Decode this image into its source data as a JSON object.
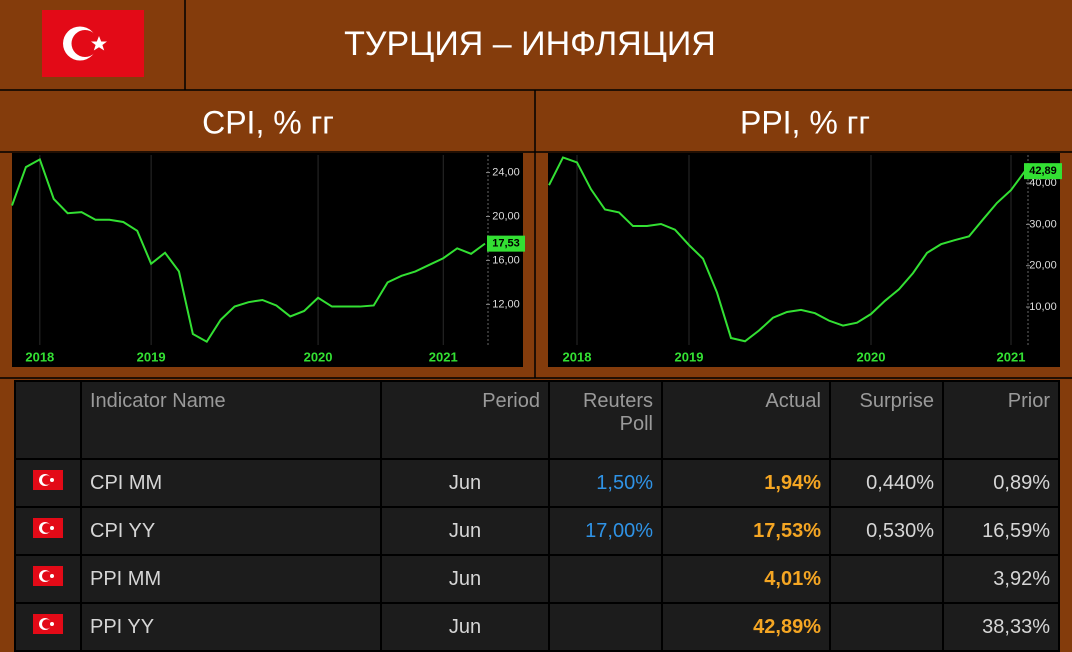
{
  "header": {
    "title": "ТУРЦИЯ – ИНФЛЯЦИЯ"
  },
  "chart_data": [
    {
      "type": "line",
      "title": "CPI, % гг",
      "categories": [
        null,
        null,
        "2018",
        null,
        null,
        null,
        null,
        null,
        null,
        null,
        "2019",
        null,
        null,
        null,
        null,
        null,
        null,
        null,
        null,
        null,
        null,
        null,
        "2020",
        null,
        null,
        null,
        null,
        null,
        null,
        null,
        null,
        "2021",
        null,
        null,
        null
      ],
      "values": [
        21.0,
        24.5,
        25.2,
        21.6,
        20.3,
        20.4,
        19.7,
        19.7,
        19.5,
        18.7,
        15.7,
        16.7,
        15.0,
        9.3,
        8.6,
        10.6,
        11.8,
        12.2,
        12.4,
        11.9,
        10.9,
        11.4,
        12.6,
        11.8,
        11.8,
        11.8,
        11.9,
        14.0,
        14.6,
        15.0,
        15.6,
        16.2,
        17.1,
        16.6,
        17.53
      ],
      "value_labels": [
        null,
        null,
        null,
        null,
        null,
        null,
        null,
        null,
        null,
        null,
        null,
        null,
        null,
        null,
        null,
        null,
        null,
        null,
        null,
        null,
        null,
        null,
        null,
        null,
        null,
        null,
        null,
        null,
        null,
        null,
        null,
        null,
        null,
        null,
        "17,53"
      ],
      "color": "#33e033",
      "ylim": [
        8.3,
        25.6
      ],
      "yticks": [
        {
          "value": 12,
          "label": "12,00"
        },
        {
          "value": 16,
          "label": "16,00"
        },
        {
          "value": 20,
          "label": "20,00"
        },
        {
          "value": 24,
          "label": "24,00"
        }
      ]
    },
    {
      "type": "line",
      "title": "PPI, % гг",
      "categories": [
        null,
        null,
        "2018",
        null,
        null,
        null,
        null,
        null,
        null,
        null,
        "2019",
        null,
        null,
        null,
        null,
        null,
        null,
        null,
        null,
        null,
        null,
        null,
        null,
        "2020",
        null,
        null,
        null,
        null,
        null,
        null,
        null,
        null,
        null,
        "2021",
        null
      ],
      "values": [
        39.5,
        46.2,
        45.0,
        38.5,
        33.6,
        32.9,
        29.6,
        29.6,
        30.1,
        28.7,
        25.0,
        21.7,
        13.5,
        2.5,
        1.7,
        4.3,
        7.4,
        8.8,
        9.3,
        8.5,
        6.7,
        5.5,
        6.2,
        8.3,
        11.5,
        14.3,
        18.2,
        23.1,
        25.2,
        26.2,
        27.1,
        31.2,
        35.2,
        38.3,
        42.89
      ],
      "value_labels": [
        null,
        null,
        null,
        null,
        null,
        null,
        null,
        null,
        null,
        null,
        null,
        null,
        null,
        null,
        null,
        null,
        null,
        null,
        null,
        null,
        null,
        null,
        null,
        null,
        null,
        null,
        null,
        null,
        null,
        null,
        null,
        null,
        null,
        null,
        "42,89"
      ],
      "color": "#33e033",
      "ylim": [
        0.8,
        46.8
      ],
      "yticks": [
        {
          "value": 10,
          "label": "10,00"
        },
        {
          "value": 20,
          "label": "20,00"
        },
        {
          "value": 30,
          "label": "30,00"
        },
        {
          "value": 40,
          "label": "40,00"
        }
      ]
    }
  ],
  "table": {
    "columns": [
      "Indicator Name",
      "Period",
      "Reuters Poll",
      "Actual",
      "Surprise",
      "Prior"
    ],
    "rows": [
      [
        "CPI MM",
        "Jun",
        "1,50%",
        "1,94%",
        "0,440%",
        "0,89%"
      ],
      [
        "CPI YY",
        "Jun",
        "17,00%",
        "17,53%",
        "0,530%",
        "16,59%"
      ],
      [
        "PPI MM",
        "Jun",
        null,
        "4,01%",
        null,
        "3,92%"
      ],
      [
        "PPI YY",
        "Jun",
        null,
        "42,89%",
        null,
        "38,33%"
      ]
    ]
  }
}
